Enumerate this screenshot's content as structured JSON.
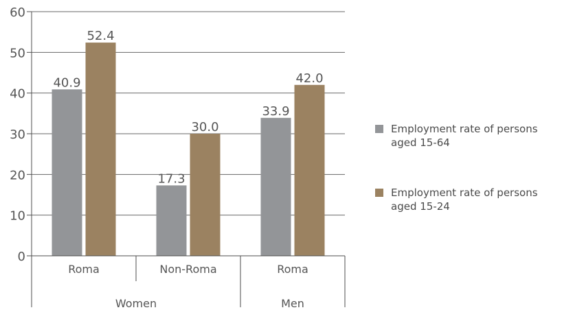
{
  "chart_data": {
    "type": "bar",
    "title": "",
    "xlabel": "",
    "ylabel": "",
    "ylim": [
      0,
      60
    ],
    "yticks": [
      0,
      10,
      20,
      30,
      40,
      50,
      60
    ],
    "grid": true,
    "categories": [
      "Roma",
      "Non-Roma",
      "Roma"
    ],
    "groups": [
      {
        "label": "Women",
        "categories": [
          "Roma",
          "Non-Roma"
        ]
      },
      {
        "label": "Men",
        "categories": [
          "Roma"
        ]
      }
    ],
    "series": [
      {
        "name": "Employment rate of persons aged 15-64",
        "color": "#939598",
        "values": [
          40.9,
          17.3,
          33.9
        ],
        "labels": [
          "40.9",
          "17.3",
          "33.9"
        ]
      },
      {
        "name": "Employment rate of persons aged 15-24",
        "color": "#9b8261",
        "values": [
          52.4,
          30.0,
          42.0
        ],
        "labels": [
          "52.4",
          "30.0",
          "42.0"
        ]
      }
    ],
    "legend_position": "right"
  }
}
